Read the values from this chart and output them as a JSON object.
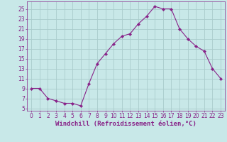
{
  "x": [
    0,
    1,
    2,
    3,
    4,
    5,
    6,
    7,
    8,
    9,
    10,
    11,
    12,
    13,
    14,
    15,
    16,
    17,
    18,
    19,
    20,
    21,
    22,
    23
  ],
  "y": [
    9,
    9,
    7,
    6.5,
    6,
    6,
    5.5,
    10,
    14,
    16,
    18,
    19.5,
    20,
    22,
    23.5,
    25.5,
    25,
    25,
    21,
    19,
    17.5,
    16.5,
    13,
    11
  ],
  "line_color": "#882288",
  "marker": "D",
  "marker_size": 2.2,
  "bg_color": "#c8e8e8",
  "grid_color": "#aacccc",
  "xlabel": "Windchill (Refroidissement éolien,°C)",
  "xlabel_color": "#882288",
  "ylim": [
    4.5,
    26.5
  ],
  "yticks": [
    5,
    7,
    9,
    11,
    13,
    15,
    17,
    19,
    21,
    23,
    25
  ],
  "xticks": [
    0,
    1,
    2,
    3,
    4,
    5,
    6,
    7,
    8,
    9,
    10,
    11,
    12,
    13,
    14,
    15,
    16,
    17,
    18,
    19,
    20,
    21,
    22,
    23
  ],
  "tick_color": "#882288",
  "tick_fontsize": 5.5,
  "xlabel_fontsize": 6.5
}
